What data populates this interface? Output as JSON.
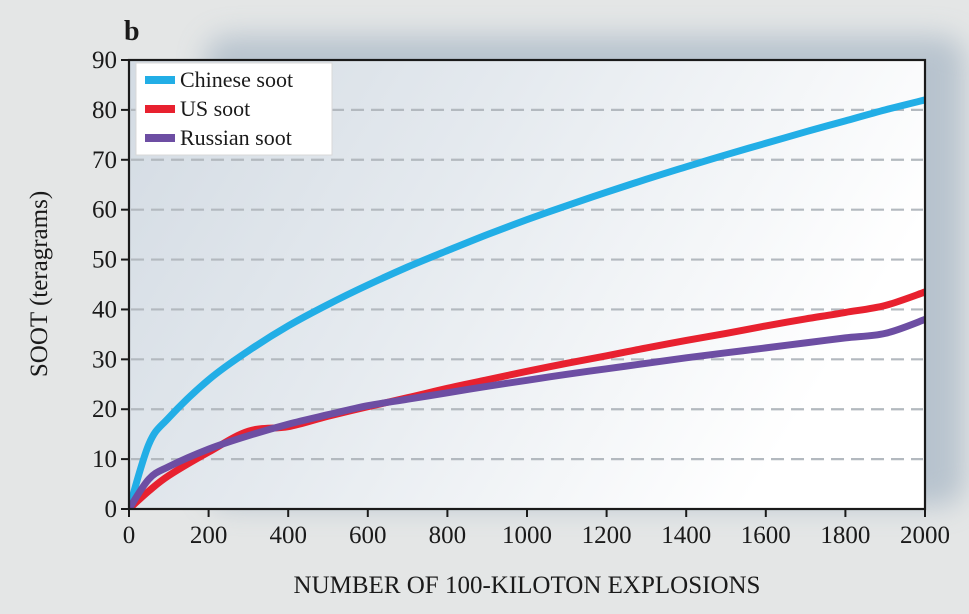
{
  "chart_data": {
    "type": "line",
    "panel_label": "b",
    "title": "",
    "xlabel": "NUMBER OF 100-KILOTON EXPLOSIONS",
    "ylabel": "SOOT (teragrams)",
    "xlim": [
      0,
      2000
    ],
    "ylim": [
      0,
      90
    ],
    "xticks": [
      0,
      200,
      400,
      600,
      800,
      1000,
      1200,
      1400,
      1600,
      1800,
      2000
    ],
    "yticks": [
      0,
      10,
      20,
      30,
      40,
      50,
      60,
      70,
      80,
      90
    ],
    "grid": "horizontal dashed",
    "legend_position": "top-left",
    "x": [
      0,
      50,
      100,
      200,
      300,
      400,
      500,
      600,
      700,
      800,
      900,
      1000,
      1100,
      1200,
      1300,
      1400,
      1500,
      1600,
      1700,
      1800,
      1900,
      2000
    ],
    "series": [
      {
        "name": "Chinese soot",
        "color": "#22aee6",
        "values": [
          0,
          13,
          18.3,
          25.9,
          31.7,
          36.7,
          41.0,
          44.9,
          48.5,
          51.8,
          55.0,
          58.0,
          60.8,
          63.5,
          66.1,
          68.6,
          71.0,
          73.3,
          75.6,
          77.8,
          80.0,
          82
        ]
      },
      {
        "name": "US soot",
        "color": "#e8212f",
        "values": [
          0,
          3.6,
          6.7,
          11.4,
          15.6,
          16.5,
          18.6,
          20.5,
          22.3,
          24.2,
          25.9,
          27.6,
          29.2,
          30.7,
          32.3,
          33.8,
          35.2,
          36.7,
          38.1,
          39.4,
          40.8,
          43.5
        ]
      },
      {
        "name": "Russian soot",
        "color": "#6d4ea3",
        "values": [
          0,
          6.0,
          8.5,
          12.0,
          14.7,
          17.0,
          18.9,
          20.7,
          22.0,
          23.3,
          24.6,
          25.8,
          27.0,
          28.1,
          29.2,
          30.3,
          31.3,
          32.3,
          33.3,
          34.3,
          35.2,
          38
        ]
      }
    ]
  }
}
